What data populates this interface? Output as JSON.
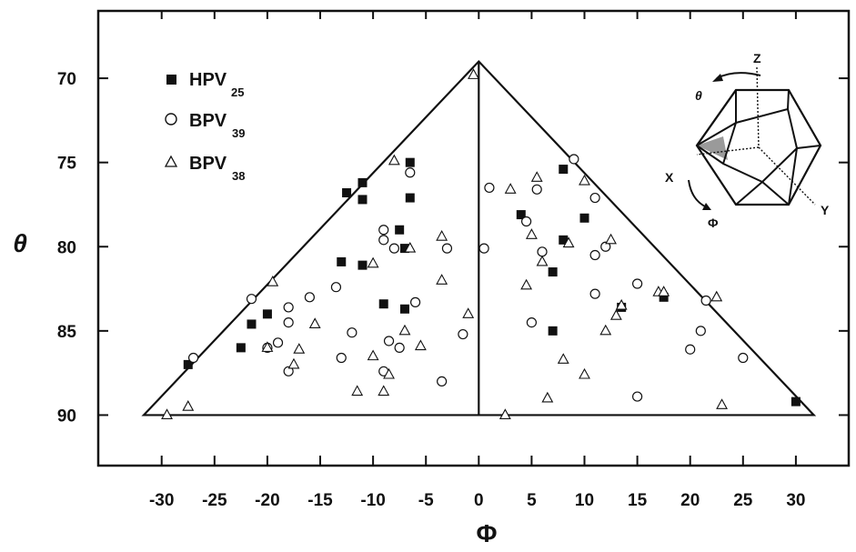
{
  "chart_data": {
    "type": "scatter",
    "xlabel": "Φ",
    "ylabel": "θ",
    "xlim": [
      -36,
      35
    ],
    "ylim": [
      93,
      66
    ],
    "x_ticks": [
      -30,
      -25,
      -20,
      -15,
      -10,
      -5,
      0,
      5,
      10,
      15,
      20,
      25,
      30
    ],
    "y_ticks": [
      70,
      75,
      80,
      85,
      90
    ],
    "grid": false,
    "legend_position": "top-left",
    "triangle": [
      [
        -31.7,
        90
      ],
      [
        0,
        69
      ],
      [
        31.7,
        90
      ]
    ],
    "divider": [
      [
        0,
        69
      ],
      [
        0,
        90
      ]
    ],
    "series": [
      {
        "name": "HPV",
        "subscript": "25",
        "marker": "filled-square",
        "points": [
          [
            -27.5,
            87.0
          ],
          [
            -22.5,
            86.0
          ],
          [
            -21.5,
            84.6
          ],
          [
            -20.0,
            84.0
          ],
          [
            -12.5,
            76.8
          ],
          [
            -11.0,
            76.2
          ],
          [
            -11.0,
            77.2
          ],
          [
            -13.0,
            80.9
          ],
          [
            -11.0,
            81.1
          ],
          [
            -9.0,
            83.4
          ],
          [
            -7.5,
            79.0
          ],
          [
            -7.0,
            80.1
          ],
          [
            -6.5,
            75.0
          ],
          [
            -6.5,
            77.1
          ],
          [
            -7.0,
            83.7
          ],
          [
            4.0,
            78.1
          ],
          [
            8.0,
            75.4
          ],
          [
            8.0,
            79.6
          ],
          [
            10.0,
            78.3
          ],
          [
            7.0,
            81.5
          ],
          [
            7.0,
            85.0
          ],
          [
            13.5,
            83.6
          ],
          [
            17.5,
            83.0
          ],
          [
            30.0,
            89.2
          ]
        ]
      },
      {
        "name": "BPV",
        "subscript": "39",
        "marker": "open-circle",
        "points": [
          [
            -27.0,
            86.6
          ],
          [
            -21.5,
            83.1
          ],
          [
            -20.0,
            86.0
          ],
          [
            -19.0,
            85.7
          ],
          [
            -18.0,
            83.6
          ],
          [
            -18.0,
            84.5
          ],
          [
            -18.0,
            87.4
          ],
          [
            -16.0,
            83.0
          ],
          [
            -13.5,
            82.4
          ],
          [
            -12.0,
            85.1
          ],
          [
            -13.0,
            86.6
          ],
          [
            -9.0,
            79.0
          ],
          [
            -9.0,
            79.6
          ],
          [
            -8.0,
            80.1
          ],
          [
            -6.5,
            75.6
          ],
          [
            -6.0,
            83.3
          ],
          [
            -8.5,
            85.6
          ],
          [
            -7.5,
            86.0
          ],
          [
            -9.0,
            87.4
          ],
          [
            -3.0,
            80.1
          ],
          [
            -1.5,
            85.2
          ],
          [
            -3.5,
            88.0
          ],
          [
            0.5,
            80.1
          ],
          [
            1.0,
            76.5
          ],
          [
            4.5,
            78.5
          ],
          [
            5.5,
            76.6
          ],
          [
            6.0,
            80.3
          ],
          [
            5.0,
            84.5
          ],
          [
            9.0,
            74.8
          ],
          [
            11.0,
            77.1
          ],
          [
            12.0,
            80.0
          ],
          [
            11.0,
            80.5
          ],
          [
            11.0,
            82.8
          ],
          [
            15.0,
            82.2
          ],
          [
            15.0,
            88.9
          ],
          [
            20.0,
            86.1
          ],
          [
            21.0,
            85.0
          ],
          [
            21.5,
            83.2
          ],
          [
            25.0,
            86.6
          ]
        ]
      },
      {
        "name": "BPV",
        "subscript": "38",
        "marker": "open-triangle",
        "points": [
          [
            -0.5,
            69.8
          ],
          [
            -8.0,
            74.9
          ],
          [
            -6.5,
            80.1
          ],
          [
            -3.5,
            79.4
          ],
          [
            -3.5,
            82.0
          ],
          [
            -1.0,
            84.0
          ],
          [
            -10.0,
            81.0
          ],
          [
            -19.5,
            82.1
          ],
          [
            -15.5,
            84.6
          ],
          [
            -17.0,
            86.1
          ],
          [
            -17.5,
            87.0
          ],
          [
            -20.0,
            86.0
          ],
          [
            -10.0,
            86.5
          ],
          [
            -7.0,
            85.0
          ],
          [
            -5.5,
            85.9
          ],
          [
            -8.5,
            87.6
          ],
          [
            -9.0,
            88.6
          ],
          [
            -11.5,
            88.6
          ],
          [
            -27.5,
            89.5
          ],
          [
            -29.5,
            90.0
          ],
          [
            3.0,
            76.6
          ],
          [
            5.0,
            79.3
          ],
          [
            5.5,
            75.9
          ],
          [
            6.0,
            80.9
          ],
          [
            4.5,
            82.3
          ],
          [
            8.5,
            79.8
          ],
          [
            10.0,
            76.1
          ],
          [
            12.5,
            79.6
          ],
          [
            13.0,
            84.1
          ],
          [
            12.0,
            85.0
          ],
          [
            8.0,
            86.7
          ],
          [
            10.0,
            87.6
          ],
          [
            6.5,
            89.0
          ],
          [
            2.5,
            90.0
          ],
          [
            13.5,
            83.5
          ],
          [
            17.0,
            82.7
          ],
          [
            17.5,
            82.7
          ],
          [
            22.5,
            83.0
          ],
          [
            23.0,
            89.4
          ]
        ]
      }
    ]
  },
  "inset": {
    "labels": [
      "Z",
      "θ",
      "X",
      "Y",
      "Φ"
    ]
  }
}
